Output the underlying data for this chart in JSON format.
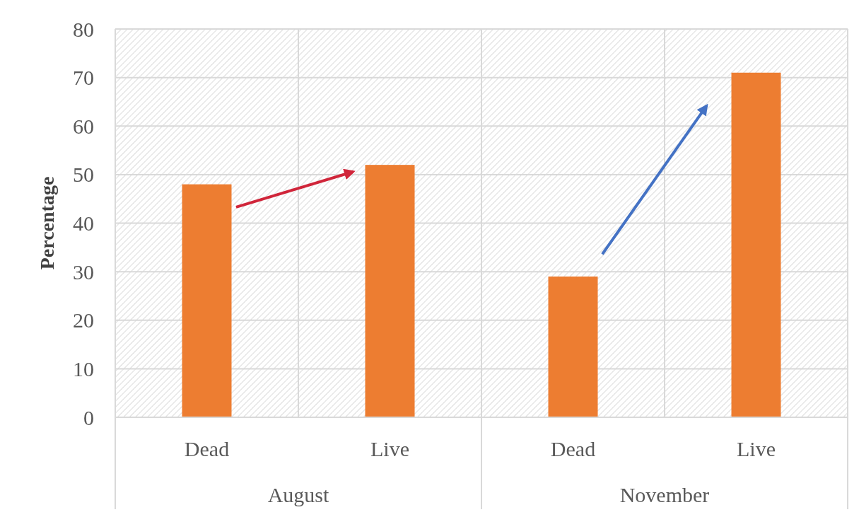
{
  "chart_data": {
    "type": "bar",
    "ylabel": "Percentage",
    "categories": [
      "Dead",
      "Live",
      "Dead",
      "Live"
    ],
    "values": [
      48,
      52,
      29,
      71
    ],
    "color": "#ed7d31",
    "ylim": [
      0,
      80
    ],
    "yticks": [
      0,
      10,
      20,
      30,
      40,
      50,
      60,
      70,
      80
    ],
    "grid": true,
    "annotations": [
      "August",
      "November"
    ]
  }
}
